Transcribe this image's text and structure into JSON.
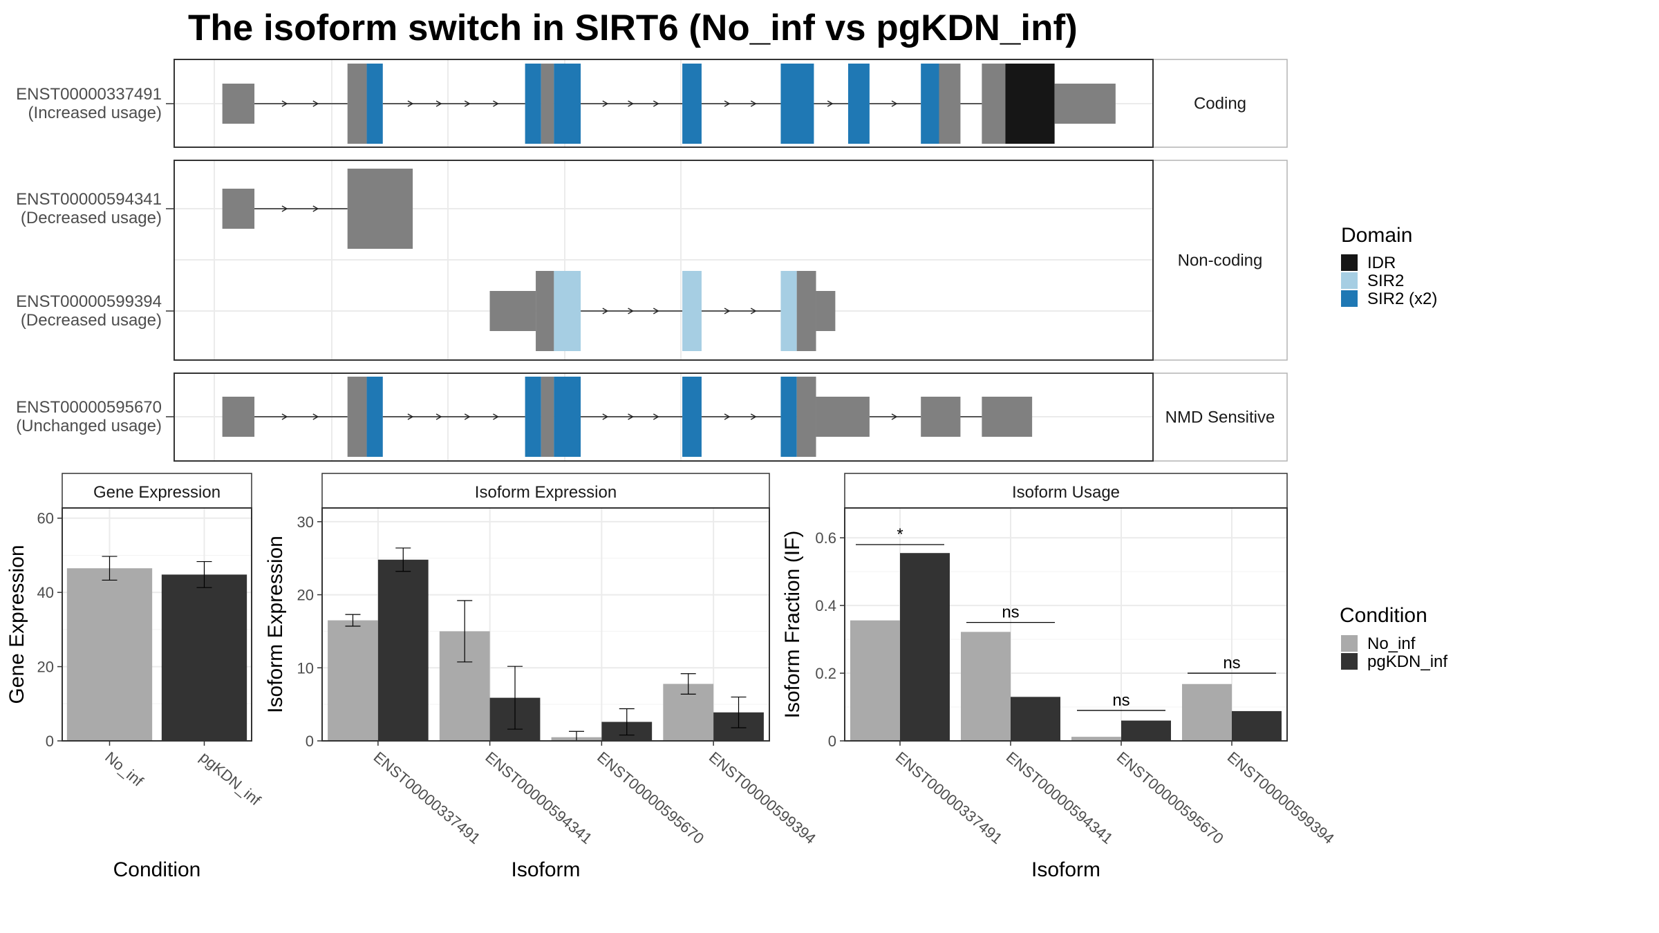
{
  "title": "The isoform switch in SIRT6 (No_inf vs pgKDN_inf)",
  "structure": {
    "groups": [
      {
        "label": "Coding",
        "rows": [
          {
            "id": "ENST00000337491",
            "usage": "(Increased usage)",
            "exons": [
              [
                205,
                235,
                "gray",
                "utr"
              ],
              [
                322,
                340,
                "gray",
                "cds"
              ],
              [
                340,
                355,
                "SIR2 (x2)",
                "cds"
              ],
              [
                488,
                503,
                "SIR2 (x2)",
                "cds"
              ],
              [
                503,
                515,
                "gray",
                "cds"
              ],
              [
                515,
                540,
                "SIR2 (x2)",
                "cds"
              ],
              [
                635,
                653,
                "SIR2 (x2)",
                "cds"
              ],
              [
                727,
                758,
                "SIR2 (x2)",
                "cds"
              ],
              [
                790,
                810,
                "SIR2 (x2)",
                "cds"
              ],
              [
                858,
                875,
                "SIR2 (x2)",
                "cds"
              ],
              [
                875,
                895,
                "gray",
                "cds"
              ],
              [
                915,
                937,
                "gray",
                "cds"
              ],
              [
                937,
                983,
                "IDR",
                "cds"
              ],
              [
                983,
                1040,
                "gray",
                "utr"
              ]
            ]
          }
        ]
      },
      {
        "label": "Non-coding",
        "rows": [
          {
            "id": "ENST00000594341",
            "usage": "(Decreased usage)",
            "exons": [
              [
                205,
                235,
                "gray",
                "utr"
              ],
              [
                322,
                383,
                "gray",
                "cds"
              ]
            ]
          },
          {
            "id": "ENST00000599394",
            "usage": "(Decreased usage)",
            "exons": [
              [
                455,
                498,
                "gray",
                "utr"
              ],
              [
                498,
                515,
                "gray",
                "cds"
              ],
              [
                515,
                540,
                "SIR2",
                "cds"
              ],
              [
                635,
                653,
                "SIR2",
                "cds"
              ],
              [
                727,
                742,
                "SIR2",
                "cds"
              ],
              [
                742,
                760,
                "gray",
                "cds"
              ],
              [
                760,
                778,
                "gray",
                "utr"
              ]
            ]
          }
        ]
      },
      {
        "label": "NMD Sensitive",
        "rows": [
          {
            "id": "ENST00000595670",
            "usage": "(Unchanged usage)",
            "exons": [
              [
                205,
                235,
                "gray",
                "utr"
              ],
              [
                322,
                340,
                "gray",
                "cds"
              ],
              [
                340,
                355,
                "SIR2 (x2)",
                "cds"
              ],
              [
                488,
                503,
                "SIR2 (x2)",
                "cds"
              ],
              [
                503,
                515,
                "gray",
                "cds"
              ],
              [
                515,
                540,
                "SIR2 (x2)",
                "cds"
              ],
              [
                635,
                653,
                "SIR2 (x2)",
                "cds"
              ],
              [
                727,
                742,
                "SIR2 (x2)",
                "cds"
              ],
              [
                742,
                760,
                "gray",
                "cds"
              ],
              [
                760,
                810,
                "gray",
                "utr"
              ],
              [
                858,
                895,
                "gray",
                "utr"
              ],
              [
                915,
                962,
                "gray",
                "utr"
              ]
            ]
          }
        ]
      }
    ],
    "domain_legend": {
      "title": "Domain",
      "items": [
        {
          "label": "IDR",
          "color": "#161616"
        },
        {
          "label": "SIR2",
          "color": "#a6cee3"
        },
        {
          "label": "SIR2 (x2)",
          "color": "#1f78b4"
        }
      ]
    },
    "base_color": "#808080"
  },
  "chart_data": [
    {
      "type": "bar",
      "panel": "Gene Expression",
      "categories": [
        "No_inf",
        "pgKDN_inf"
      ],
      "series": [
        {
          "values": [
            46.5,
            44.8
          ],
          "error": [
            3.2,
            3.5
          ]
        }
      ],
      "colors": [
        "#aaaaaa",
        "#333333"
      ],
      "xlabel": "Condition",
      "ylabel": "Gene Expression",
      "ylim": [
        0,
        62
      ],
      "yticks": [
        0,
        20,
        40,
        60
      ]
    },
    {
      "type": "bar",
      "panel": "Isoform Expression",
      "categories": [
        "ENST00000337491",
        "ENST00000594341",
        "ENST00000595670",
        "ENST00000599394"
      ],
      "series": [
        {
          "name": "No_inf",
          "values": [
            16.5,
            15.0,
            0.5,
            7.8
          ],
          "error": [
            0.8,
            4.2,
            0.8,
            1.4
          ]
        },
        {
          "name": "pgKDN_inf",
          "values": [
            24.8,
            5.9,
            2.6,
            3.9
          ],
          "error": [
            1.6,
            4.3,
            1.8,
            2.1
          ]
        }
      ],
      "xlabel": "Isoform",
      "ylabel": "Isoform Expression",
      "ylim": [
        0,
        31.5
      ],
      "yticks": [
        0,
        10,
        20,
        30
      ]
    },
    {
      "type": "bar",
      "panel": "Isoform Usage",
      "categories": [
        "ENST00000337491",
        "ENST00000594341",
        "ENST00000595670",
        "ENST00000599394"
      ],
      "series": [
        {
          "name": "No_inf",
          "values": [
            0.356,
            0.322,
            0.012,
            0.168
          ]
        },
        {
          "name": "pgKDN_inf",
          "values": [
            0.555,
            0.13,
            0.06,
            0.088
          ]
        }
      ],
      "significance": [
        "*",
        "ns",
        "ns",
        "ns"
      ],
      "sig_levels": [
        0.58,
        0.35,
        0.09,
        0.2
      ],
      "xlabel": "Isoform",
      "ylabel": "Isoform Fraction (IF)",
      "ylim": [
        0,
        0.68
      ],
      "yticks": [
        0.0,
        0.2,
        0.4,
        0.6
      ]
    }
  ],
  "condition_legend": {
    "title": "Condition",
    "items": [
      {
        "label": "No_inf",
        "color": "#aaaaaa"
      },
      {
        "label": "pgKDN_inf",
        "color": "#333333"
      }
    ]
  }
}
